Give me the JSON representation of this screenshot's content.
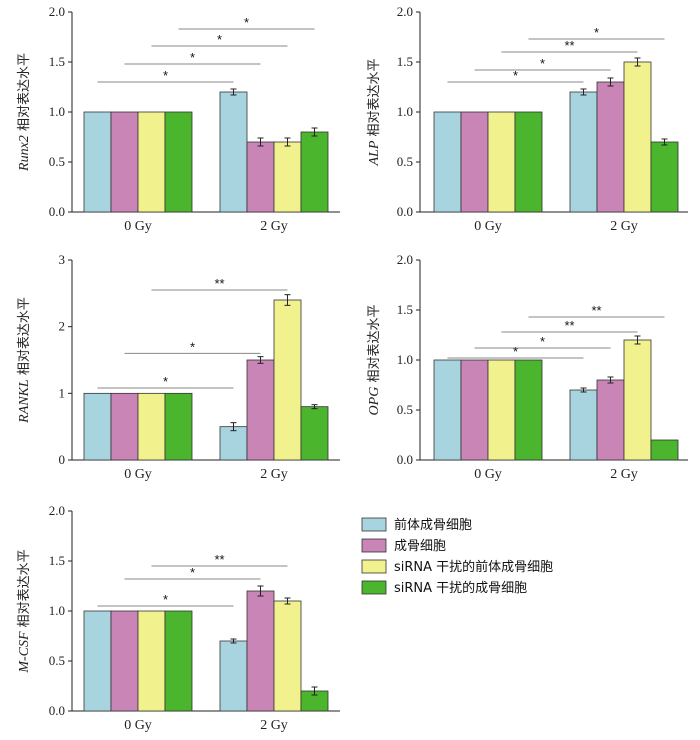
{
  "colors": {
    "series": [
      "#a8d4e0",
      "#c985b6",
      "#f1f28e",
      "#4cb52e"
    ],
    "bar_stroke": "#333333",
    "axis": "#222222",
    "bracket": "#888888"
  },
  "legend": {
    "items": [
      "前体成骨细胞",
      "成骨细胞",
      "siRNA 干扰的前体成骨细胞",
      "siRNA 干扰的成骨细胞"
    ]
  },
  "chart_data": [
    {
      "type": "bar",
      "ylabel_italic": "Runx2",
      "ylabel_rest": " 相对表达水平",
      "categories": [
        "0 Gy",
        "2 Gy"
      ],
      "series": [
        {
          "name": "前体成骨细胞",
          "values": [
            1.0,
            1.2
          ],
          "errors": [
            0.0,
            0.03
          ]
        },
        {
          "name": "成骨细胞",
          "values": [
            1.0,
            0.7
          ],
          "errors": [
            0.0,
            0.04
          ]
        },
        {
          "name": "siRNA 干扰的前体成骨细胞",
          "values": [
            1.0,
            0.7
          ],
          "errors": [
            0.0,
            0.04
          ]
        },
        {
          "name": "siRNA 干扰的成骨细胞",
          "values": [
            1.0,
            0.8
          ],
          "errors": [
            0.0,
            0.04
          ]
        }
      ],
      "ylim": [
        0,
        2.0
      ],
      "yticks": [
        "0.0",
        "0.5",
        "1.0",
        "1.5",
        "2.0"
      ],
      "significance": [
        {
          "x1": 0,
          "x2": 4,
          "y": 1.3,
          "label": "*"
        },
        {
          "x1": 1,
          "x2": 5,
          "y": 1.48,
          "label": "*"
        },
        {
          "x1": 2,
          "x2": 6,
          "y": 1.66,
          "label": "*"
        },
        {
          "x1": 3,
          "x2": 7,
          "y": 1.83,
          "label": "*"
        }
      ]
    },
    {
      "type": "bar",
      "ylabel_italic": "ALP",
      "ylabel_rest": " 相对表达水平",
      "categories": [
        "0 Gy",
        "2 Gy"
      ],
      "series": [
        {
          "name": "前体成骨细胞",
          "values": [
            1.0,
            1.2
          ],
          "errors": [
            0.0,
            0.03
          ]
        },
        {
          "name": "成骨细胞",
          "values": [
            1.0,
            1.3
          ],
          "errors": [
            0.0,
            0.04
          ]
        },
        {
          "name": "siRNA 干扰的前体成骨细胞",
          "values": [
            1.0,
            1.5
          ],
          "errors": [
            0.0,
            0.04
          ]
        },
        {
          "name": "siRNA 干扰的成骨细胞",
          "values": [
            1.0,
            0.7
          ],
          "errors": [
            0.0,
            0.03
          ]
        }
      ],
      "ylim": [
        0,
        2.0
      ],
      "yticks": [
        "0.0",
        "0.5",
        "1.0",
        "1.5",
        "2.0"
      ],
      "significance": [
        {
          "x1": 0,
          "x2": 4,
          "y": 1.3,
          "label": "*"
        },
        {
          "x1": 1,
          "x2": 5,
          "y": 1.42,
          "label": "*"
        },
        {
          "x1": 2,
          "x2": 6,
          "y": 1.6,
          "label": "**"
        },
        {
          "x1": 3,
          "x2": 7,
          "y": 1.73,
          "label": "*"
        }
      ]
    },
    {
      "type": "bar",
      "ylabel_italic": "RANKL",
      "ylabel_rest": " 相对表达水平",
      "categories": [
        "0 Gy",
        "2 Gy"
      ],
      "series": [
        {
          "name": "前体成骨细胞",
          "values": [
            1.0,
            0.5
          ],
          "errors": [
            0.0,
            0.06
          ]
        },
        {
          "name": "成骨细胞",
          "values": [
            1.0,
            1.5
          ],
          "errors": [
            0.0,
            0.05
          ]
        },
        {
          "name": "siRNA 干扰的前体成骨细胞",
          "values": [
            1.0,
            2.4
          ],
          "errors": [
            0.0,
            0.08
          ]
        },
        {
          "name": "siRNA 干扰的成骨细胞",
          "values": [
            1.0,
            0.8
          ],
          "errors": [
            0.0,
            0.03
          ]
        }
      ],
      "ylim": [
        0,
        3
      ],
      "yticks": [
        "0",
        "1",
        "2",
        "3"
      ],
      "significance": [
        {
          "x1": 0,
          "x2": 4,
          "y": 1.08,
          "label": "*"
        },
        {
          "x1": 1,
          "x2": 5,
          "y": 1.6,
          "label": "*"
        },
        {
          "x1": 2,
          "x2": 6,
          "y": 2.55,
          "label": "**"
        }
      ]
    },
    {
      "type": "bar",
      "ylabel_italic": "OPG",
      "ylabel_rest": " 相对表达水平",
      "categories": [
        "0 Gy",
        "2 Gy"
      ],
      "series": [
        {
          "name": "前体成骨细胞",
          "values": [
            1.0,
            0.7
          ],
          "errors": [
            0.0,
            0.02
          ]
        },
        {
          "name": "成骨细胞",
          "values": [
            1.0,
            0.8
          ],
          "errors": [
            0.0,
            0.03
          ]
        },
        {
          "name": "siRNA 干扰的前体成骨细胞",
          "values": [
            1.0,
            1.2
          ],
          "errors": [
            0.0,
            0.04
          ]
        },
        {
          "name": "siRNA 干扰的成骨细胞",
          "values": [
            1.0,
            0.2
          ],
          "errors": [
            0.0,
            0.0
          ]
        }
      ],
      "ylim": [
        0,
        2.0
      ],
      "yticks": [
        "0.0",
        "0.5",
        "1.0",
        "1.5",
        "2.0"
      ],
      "significance": [
        {
          "x1": 0,
          "x2": 4,
          "y": 1.02,
          "label": "*"
        },
        {
          "x1": 1,
          "x2": 5,
          "y": 1.12,
          "label": "*"
        },
        {
          "x1": 2,
          "x2": 6,
          "y": 1.28,
          "label": "**"
        },
        {
          "x1": 3,
          "x2": 7,
          "y": 1.43,
          "label": "**"
        }
      ]
    },
    {
      "type": "bar",
      "ylabel_italic": "M-CSF",
      "ylabel_rest": " 相对表达水平",
      "categories": [
        "0 Gy",
        "2 Gy"
      ],
      "series": [
        {
          "name": "前体成骨细胞",
          "values": [
            1.0,
            0.7
          ],
          "errors": [
            0.0,
            0.02
          ]
        },
        {
          "name": "成骨细胞",
          "values": [
            1.0,
            1.2
          ],
          "errors": [
            0.0,
            0.05
          ]
        },
        {
          "name": "siRNA 干扰的前体成骨细胞",
          "values": [
            1.0,
            1.1
          ],
          "errors": [
            0.0,
            0.03
          ]
        },
        {
          "name": "siRNA 干扰的成骨细胞",
          "values": [
            1.0,
            0.2
          ],
          "errors": [
            0.0,
            0.04
          ]
        }
      ],
      "ylim": [
        0,
        2.0
      ],
      "yticks": [
        "0.0",
        "0.5",
        "1.0",
        "1.5",
        "2.0"
      ],
      "significance": [
        {
          "x1": 0,
          "x2": 4,
          "y": 1.05,
          "label": "*"
        },
        {
          "x1": 1,
          "x2": 5,
          "y": 1.32,
          "label": "*"
        },
        {
          "x1": 2,
          "x2": 6,
          "y": 1.45,
          "label": "**"
        }
      ]
    }
  ]
}
